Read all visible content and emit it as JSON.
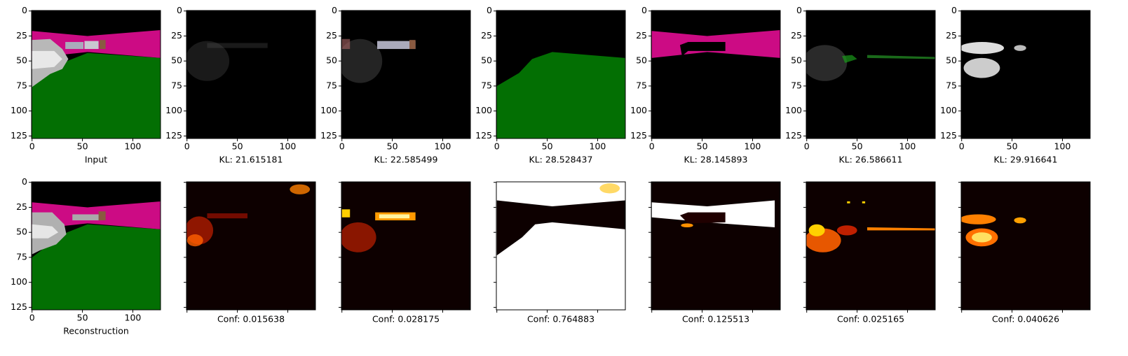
{
  "top": [
    {
      "label": "Input"
    },
    {
      "label": "KL: 21.615181"
    },
    {
      "label": "KL: 22.585499"
    },
    {
      "label": "KL: 28.528437"
    },
    {
      "label": "KL: 28.145893"
    },
    {
      "label": "KL: 26.586611"
    },
    {
      "label": "KL: 29.916641"
    }
  ],
  "bottom": [
    {
      "label": "Reconstruction"
    },
    {
      "label": "Conf: 0.015638"
    },
    {
      "label": "Conf: 0.028175"
    },
    {
      "label": "Conf: 0.764883"
    },
    {
      "label": "Conf: 0.125513"
    },
    {
      "label": "Conf: 0.025165"
    },
    {
      "label": "Conf: 0.040626"
    }
  ],
  "axes": {
    "xlim": [
      -0.5,
      127.5
    ],
    "ylim": [
      127.5,
      -0.5
    ],
    "xticks": [
      0,
      50,
      100
    ],
    "yticks": [
      0,
      25,
      50,
      75,
      100,
      125
    ]
  }
}
